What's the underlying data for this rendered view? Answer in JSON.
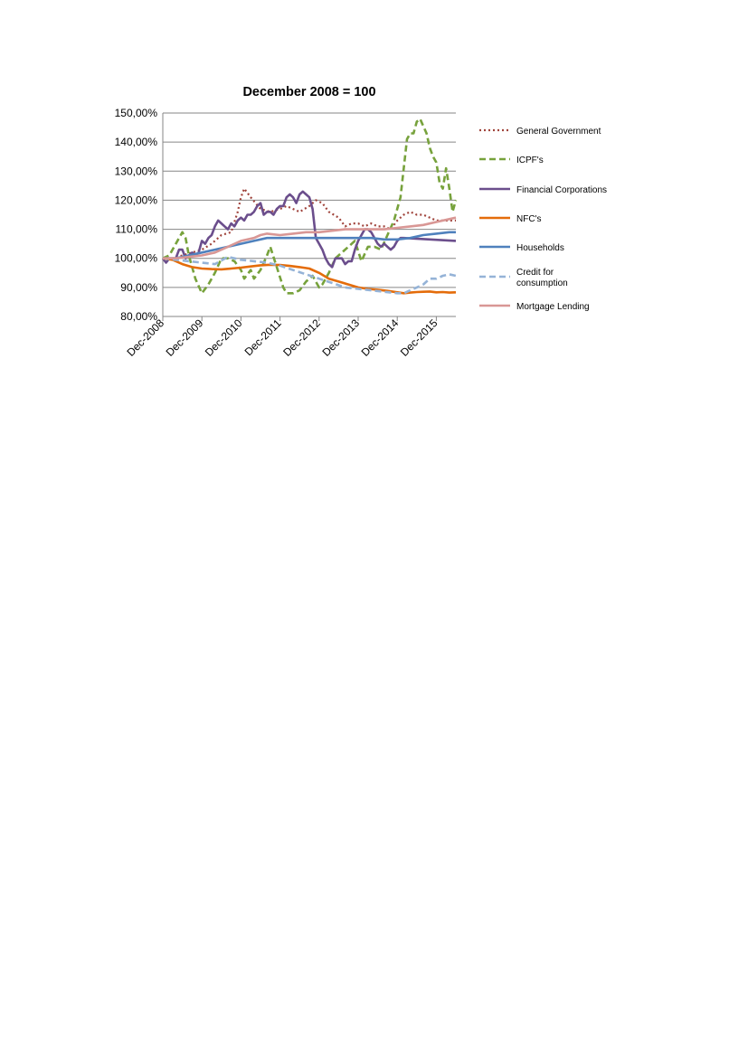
{
  "chart_data": {
    "type": "line",
    "title": "December 2008 = 100",
    "xlabel": "",
    "ylabel": "",
    "ylim": [
      80,
      150
    ],
    "y_ticks": [
      "150,00%",
      "140,00%",
      "130,00%",
      "120,00%",
      "110,00%",
      "100,00%",
      "90,00%",
      "80,00%"
    ],
    "x_tick_labels": [
      "Dec-2008",
      "Dec-2009",
      "Dec-2010",
      "Dec-2011",
      "Dec-2012",
      "Dec-2013",
      "Dec-2014",
      "Dec-2015"
    ],
    "x_range_months": [
      0,
      90
    ],
    "grid": "horizontal",
    "legend_position": "right",
    "series": [
      {
        "name": "General Government",
        "color": "#a0443c",
        "style": "dotted",
        "points": [
          [
            0,
            100
          ],
          [
            3,
            100
          ],
          [
            6,
            101
          ],
          [
            9,
            102
          ],
          [
            12,
            103
          ],
          [
            15,
            105
          ],
          [
            18,
            108
          ],
          [
            21,
            109
          ],
          [
            23,
            116
          ],
          [
            24,
            121
          ],
          [
            25,
            124
          ],
          [
            27,
            121
          ],
          [
            30,
            117
          ],
          [
            33,
            116
          ],
          [
            36,
            117
          ],
          [
            38,
            118
          ],
          [
            40,
            117
          ],
          [
            42,
            116
          ],
          [
            45,
            118
          ],
          [
            47,
            120
          ],
          [
            49,
            119
          ],
          [
            51,
            116
          ],
          [
            54,
            114
          ],
          [
            56,
            111
          ],
          [
            58,
            112
          ],
          [
            60,
            112
          ],
          [
            62,
            111
          ],
          [
            64,
            112
          ],
          [
            66,
            111
          ],
          [
            68,
            111
          ],
          [
            70,
            110
          ],
          [
            72,
            113
          ],
          [
            74,
            115
          ],
          [
            76,
            116
          ],
          [
            78,
            115
          ],
          [
            80,
            115
          ],
          [
            82,
            114
          ],
          [
            84,
            113
          ],
          [
            86,
            113
          ],
          [
            88,
            113
          ],
          [
            90,
            113
          ]
        ]
      },
      {
        "name": "ICPF's",
        "color": "#77a23c",
        "style": "dashed",
        "points": [
          [
            0,
            100
          ],
          [
            2,
            101
          ],
          [
            4,
            105
          ],
          [
            6,
            109
          ],
          [
            7,
            107
          ],
          [
            8,
            101
          ],
          [
            10,
            93
          ],
          [
            12,
            88
          ],
          [
            14,
            91
          ],
          [
            16,
            95
          ],
          [
            18,
            100
          ],
          [
            20,
            100
          ],
          [
            22,
            99
          ],
          [
            24,
            96
          ],
          [
            25,
            93
          ],
          [
            27,
            96
          ],
          [
            28,
            93
          ],
          [
            30,
            96
          ],
          [
            32,
            101
          ],
          [
            33,
            104
          ],
          [
            35,
            97
          ],
          [
            37,
            90
          ],
          [
            38,
            88
          ],
          [
            40,
            88
          ],
          [
            42,
            89
          ],
          [
            44,
            92
          ],
          [
            46,
            94
          ],
          [
            48,
            90
          ],
          [
            49,
            91
          ],
          [
            51,
            95
          ],
          [
            53,
            100
          ],
          [
            55,
            102
          ],
          [
            57,
            104
          ],
          [
            59,
            106
          ],
          [
            61,
            99
          ],
          [
            63,
            104
          ],
          [
            65,
            104
          ],
          [
            67,
            103
          ],
          [
            69,
            108
          ],
          [
            71,
            113
          ],
          [
            73,
            121
          ],
          [
            75,
            141
          ],
          [
            76,
            143
          ],
          [
            77,
            143
          ],
          [
            78,
            147
          ],
          [
            79,
            148
          ],
          [
            81,
            143
          ],
          [
            82,
            138
          ],
          [
            83,
            135
          ],
          [
            84,
            133
          ],
          [
            85,
            126
          ],
          [
            86,
            124
          ],
          [
            87,
            131
          ],
          [
            88,
            124
          ],
          [
            89,
            116
          ],
          [
            90,
            120
          ]
        ]
      },
      {
        "name": "Financial Corporations",
        "color": "#6b4e8c",
        "style": "solid",
        "points": [
          [
            0,
            100
          ],
          [
            1,
            98.5
          ],
          [
            2,
            100
          ],
          [
            4,
            100
          ],
          [
            5,
            103
          ],
          [
            6,
            103
          ],
          [
            7,
            100
          ],
          [
            8,
            101
          ],
          [
            9,
            102
          ],
          [
            10,
            101
          ],
          [
            11,
            102
          ],
          [
            12,
            106
          ],
          [
            13,
            105
          ],
          [
            14,
            107
          ],
          [
            15,
            108
          ],
          [
            16,
            111
          ],
          [
            17,
            113
          ],
          [
            18,
            112
          ],
          [
            19,
            111
          ],
          [
            20,
            110
          ],
          [
            21,
            112
          ],
          [
            22,
            111
          ],
          [
            23,
            113
          ],
          [
            24,
            114
          ],
          [
            25,
            113
          ],
          [
            26,
            115
          ],
          [
            27,
            115
          ],
          [
            28,
            116
          ],
          [
            29,
            118
          ],
          [
            30,
            119
          ],
          [
            31,
            115
          ],
          [
            32,
            116
          ],
          [
            33,
            116
          ],
          [
            34,
            115
          ],
          [
            35,
            117
          ],
          [
            36,
            118
          ],
          [
            37,
            118
          ],
          [
            38,
            121
          ],
          [
            39,
            122
          ],
          [
            40,
            121
          ],
          [
            41,
            119
          ],
          [
            42,
            122
          ],
          [
            43,
            123
          ],
          [
            44,
            122
          ],
          [
            45,
            121
          ],
          [
            46,
            117
          ],
          [
            47,
            107
          ],
          [
            48,
            105
          ],
          [
            49,
            103
          ],
          [
            50,
            100
          ],
          [
            51,
            98
          ],
          [
            52,
            97
          ],
          [
            53,
            100
          ],
          [
            54,
            100
          ],
          [
            55,
            100
          ],
          [
            56,
            98
          ],
          [
            57,
            99
          ],
          [
            58,
            99
          ],
          [
            59,
            103
          ],
          [
            60,
            106
          ],
          [
            61,
            108
          ],
          [
            62,
            110
          ],
          [
            63,
            110
          ],
          [
            64,
            109
          ],
          [
            65,
            107
          ],
          [
            66,
            105
          ],
          [
            67,
            104
          ],
          [
            68,
            105
          ],
          [
            69,
            104
          ],
          [
            70,
            103
          ],
          [
            71,
            104
          ],
          [
            72,
            106
          ],
          [
            73,
            107
          ],
          [
            74,
            107
          ],
          [
            90,
            106
          ]
        ]
      },
      {
        "name": "NFC's",
        "color": "#e46c0a",
        "style": "solid",
        "points": [
          [
            0,
            100
          ],
          [
            3,
            99.5
          ],
          [
            6,
            98
          ],
          [
            9,
            97
          ],
          [
            12,
            96.5
          ],
          [
            15,
            96.3
          ],
          [
            18,
            96.2
          ],
          [
            21,
            96.5
          ],
          [
            24,
            96.8
          ],
          [
            27,
            97.2
          ],
          [
            30,
            97.6
          ],
          [
            33,
            97.8
          ],
          [
            36,
            97.7
          ],
          [
            39,
            97.4
          ],
          [
            42,
            97
          ],
          [
            45,
            96.5
          ],
          [
            48,
            95
          ],
          [
            51,
            93
          ],
          [
            54,
            92
          ],
          [
            57,
            91
          ],
          [
            60,
            90
          ],
          [
            63,
            89.5
          ],
          [
            66,
            89.2
          ],
          [
            69,
            88.8
          ],
          [
            72,
            88.3
          ],
          [
            74,
            88
          ],
          [
            76,
            88.2
          ],
          [
            78,
            88.4
          ],
          [
            80,
            88.5
          ],
          [
            82,
            88.6
          ],
          [
            84,
            88.3
          ],
          [
            86,
            88.4
          ],
          [
            88,
            88.2
          ],
          [
            90,
            88.3
          ]
        ]
      },
      {
        "name": "Households",
        "color": "#4f81bd",
        "style": "solid",
        "points": [
          [
            0,
            100
          ],
          [
            4,
            100
          ],
          [
            8,
            101
          ],
          [
            12,
            102
          ],
          [
            16,
            103
          ],
          [
            20,
            104
          ],
          [
            24,
            105
          ],
          [
            28,
            106
          ],
          [
            32,
            107
          ],
          [
            36,
            107
          ],
          [
            40,
            107
          ],
          [
            44,
            107
          ],
          [
            48,
            107
          ],
          [
            52,
            107
          ],
          [
            56,
            107
          ],
          [
            60,
            107
          ],
          [
            64,
            107
          ],
          [
            68,
            106.5
          ],
          [
            72,
            106.5
          ],
          [
            76,
            107
          ],
          [
            80,
            108
          ],
          [
            84,
            108.5
          ],
          [
            88,
            109
          ],
          [
            90,
            109
          ]
        ]
      },
      {
        "name": "Credit for consumption",
        "color": "#95b3d7",
        "style": "dashed",
        "points": [
          [
            0,
            100
          ],
          [
            4,
            99.5
          ],
          [
            8,
            99
          ],
          [
            12,
            98.5
          ],
          [
            16,
            98
          ],
          [
            20,
            100.5
          ],
          [
            24,
            99.5
          ],
          [
            28,
            99
          ],
          [
            32,
            98.5
          ],
          [
            36,
            97.5
          ],
          [
            40,
            96
          ],
          [
            44,
            94.5
          ],
          [
            48,
            93
          ],
          [
            52,
            91.5
          ],
          [
            56,
            90
          ],
          [
            60,
            89.5
          ],
          [
            64,
            89
          ],
          [
            68,
            88.5
          ],
          [
            72,
            88
          ],
          [
            74,
            88
          ],
          [
            76,
            89
          ],
          [
            78,
            90
          ],
          [
            80,
            91
          ],
          [
            82,
            93
          ],
          [
            84,
            93
          ],
          [
            86,
            94
          ],
          [
            88,
            94.5
          ],
          [
            90,
            94
          ]
        ]
      },
      {
        "name": "Mortgage Lending",
        "color": "#d99795",
        "style": "solid",
        "points": [
          [
            0,
            100
          ],
          [
            4,
            100
          ],
          [
            8,
            100.5
          ],
          [
            12,
            101
          ],
          [
            16,
            102
          ],
          [
            20,
            104
          ],
          [
            24,
            106
          ],
          [
            28,
            107
          ],
          [
            30,
            108
          ],
          [
            32,
            108.5
          ],
          [
            36,
            108
          ],
          [
            40,
            108.5
          ],
          [
            44,
            109
          ],
          [
            48,
            109
          ],
          [
            52,
            109.5
          ],
          [
            56,
            110
          ],
          [
            60,
            110
          ],
          [
            64,
            110
          ],
          [
            68,
            110
          ],
          [
            72,
            110.5
          ],
          [
            76,
            111
          ],
          [
            80,
            111.5
          ],
          [
            84,
            112.5
          ],
          [
            88,
            113.5
          ],
          [
            90,
            114
          ]
        ]
      }
    ]
  }
}
